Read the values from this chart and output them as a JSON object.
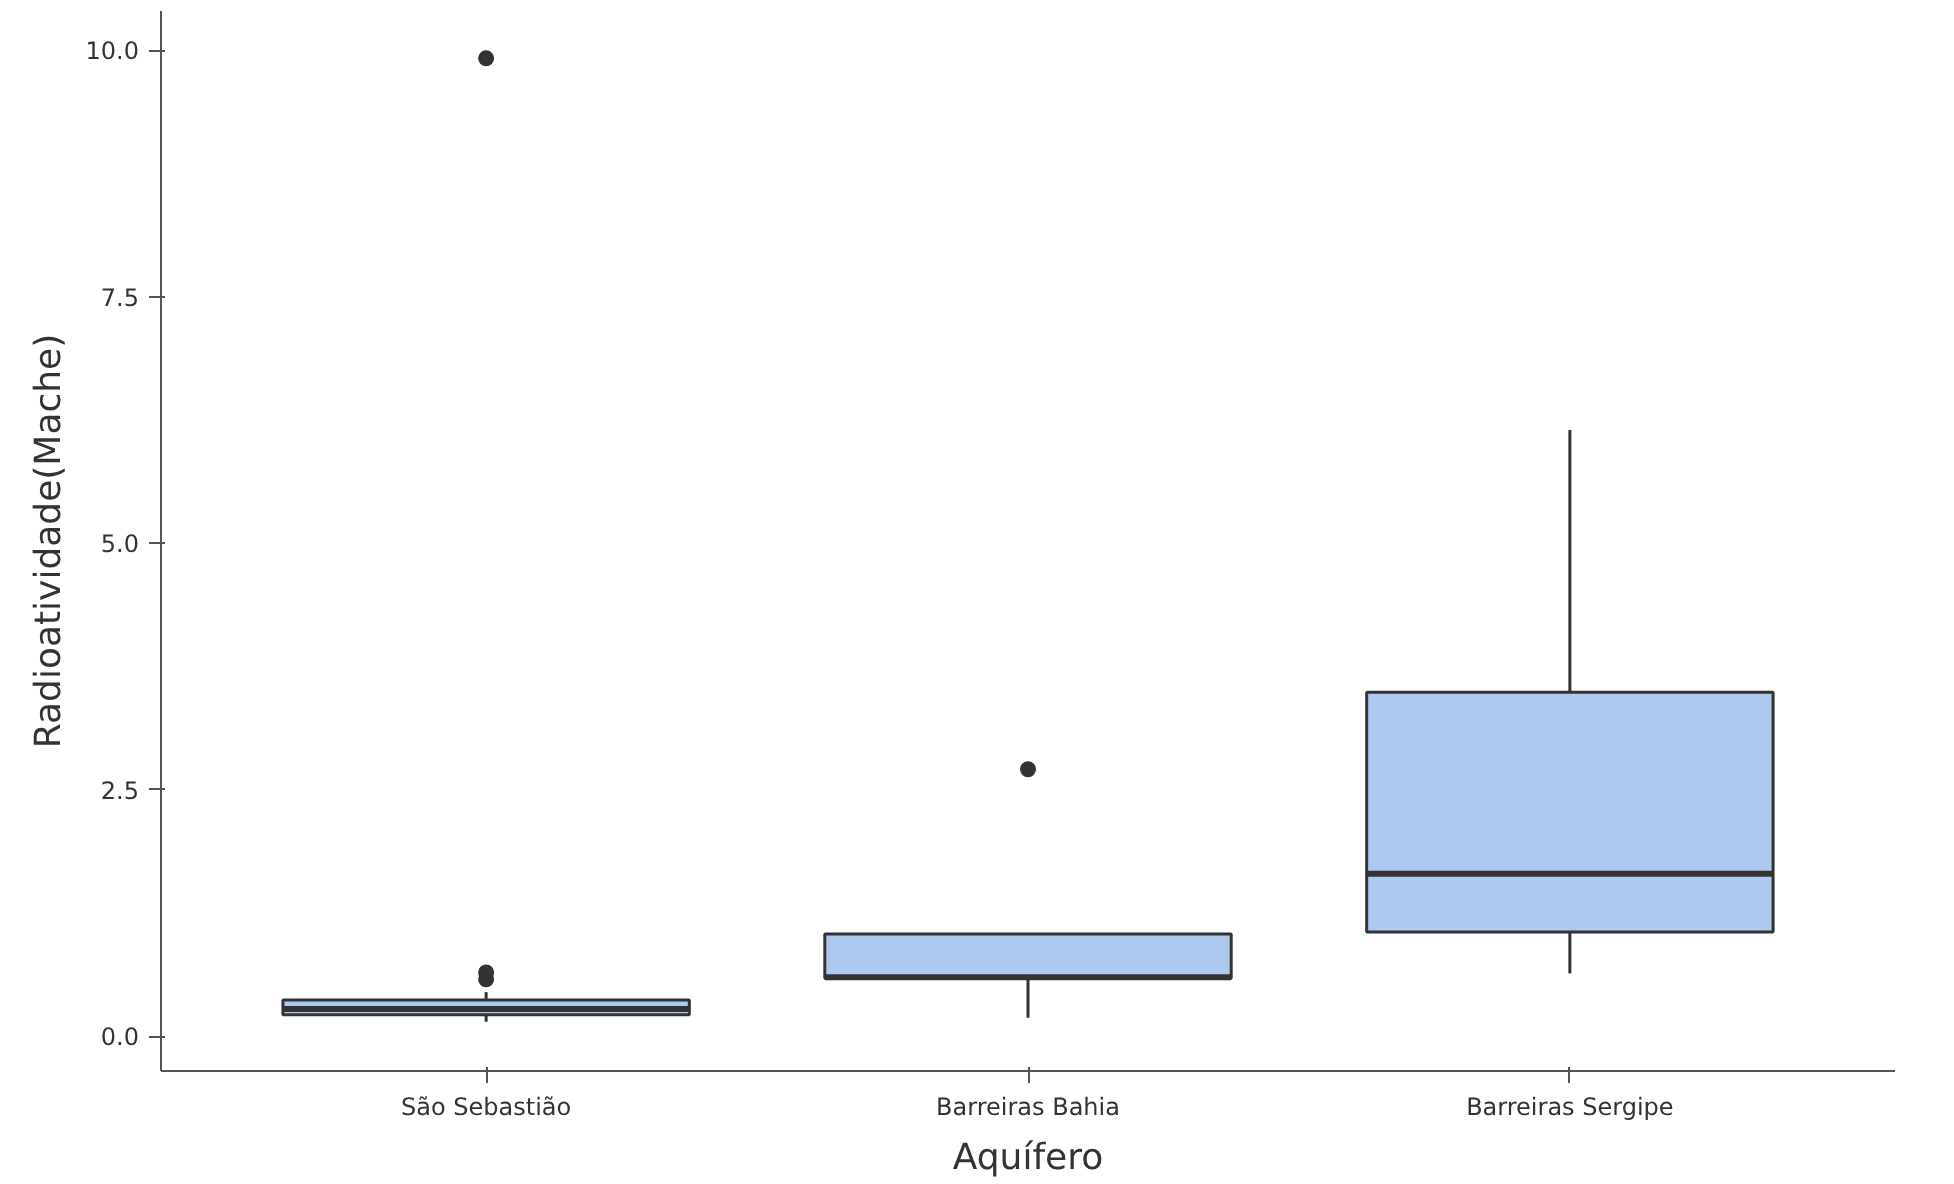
{
  "chart_data": {
    "type": "box",
    "xlabel": "Aquífero",
    "ylabel": "Radioatividade(Mache)",
    "categories": [
      "São Sebastião",
      "Barreiras Bahia",
      "Barreiras Sergipe"
    ],
    "boxes": [
      {
        "low": 0.15,
        "q1": 0.22,
        "median": 0.28,
        "q3": 0.37,
        "high": 0.45,
        "outliers": [
          0.58,
          0.65,
          9.92
        ]
      },
      {
        "low": 0.19,
        "q1": 0.59,
        "median": 0.6,
        "q3": 1.04,
        "high": 1.04,
        "outliers": [
          2.71
        ]
      },
      {
        "low": 0.64,
        "q1": 1.06,
        "median": 1.65,
        "q3": 3.49,
        "high": 6.15
      }
    ],
    "color": "#aec9f0",
    "ylim": [
      -0.35,
      10.4
    ],
    "yticks": [
      {
        "value": 0,
        "label": "0.0"
      },
      {
        "value": 2.5,
        "label": "2.5"
      },
      {
        "value": 5,
        "label": "5.0"
      },
      {
        "value": 7.5,
        "label": "7.5"
      },
      {
        "value": 10,
        "label": "10.0"
      }
    ],
    "grid": false
  }
}
